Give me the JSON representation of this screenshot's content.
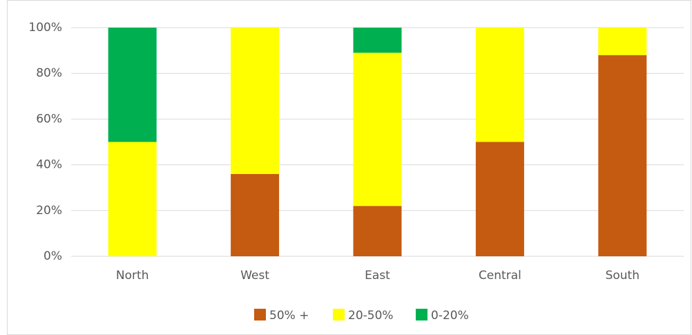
{
  "chart_data": {
    "type": "bar",
    "stacked": true,
    "categories": [
      "North",
      "West",
      "East",
      "Central",
      "South"
    ],
    "series": [
      {
        "name": "50% +",
        "color": "#c55a11",
        "values": [
          0,
          36,
          22,
          50,
          88
        ]
      },
      {
        "name": "20-50%",
        "color": "#ffff00",
        "values": [
          50,
          64,
          67,
          50,
          12
        ]
      },
      {
        "name": "0-20%",
        "color": "#00b050",
        "values": [
          50,
          0,
          11,
          0,
          0
        ]
      }
    ],
    "ylim": [
      0,
      100
    ],
    "yticks": [
      {
        "value": 0,
        "label": "0%"
      },
      {
        "value": 20,
        "label": "20%"
      },
      {
        "value": 40,
        "label": "40%"
      },
      {
        "value": 60,
        "label": "60%"
      },
      {
        "value": 80,
        "label": "80%"
      },
      {
        "value": 100,
        "label": "100%"
      }
    ],
    "grid": true,
    "legend": "bottom"
  }
}
